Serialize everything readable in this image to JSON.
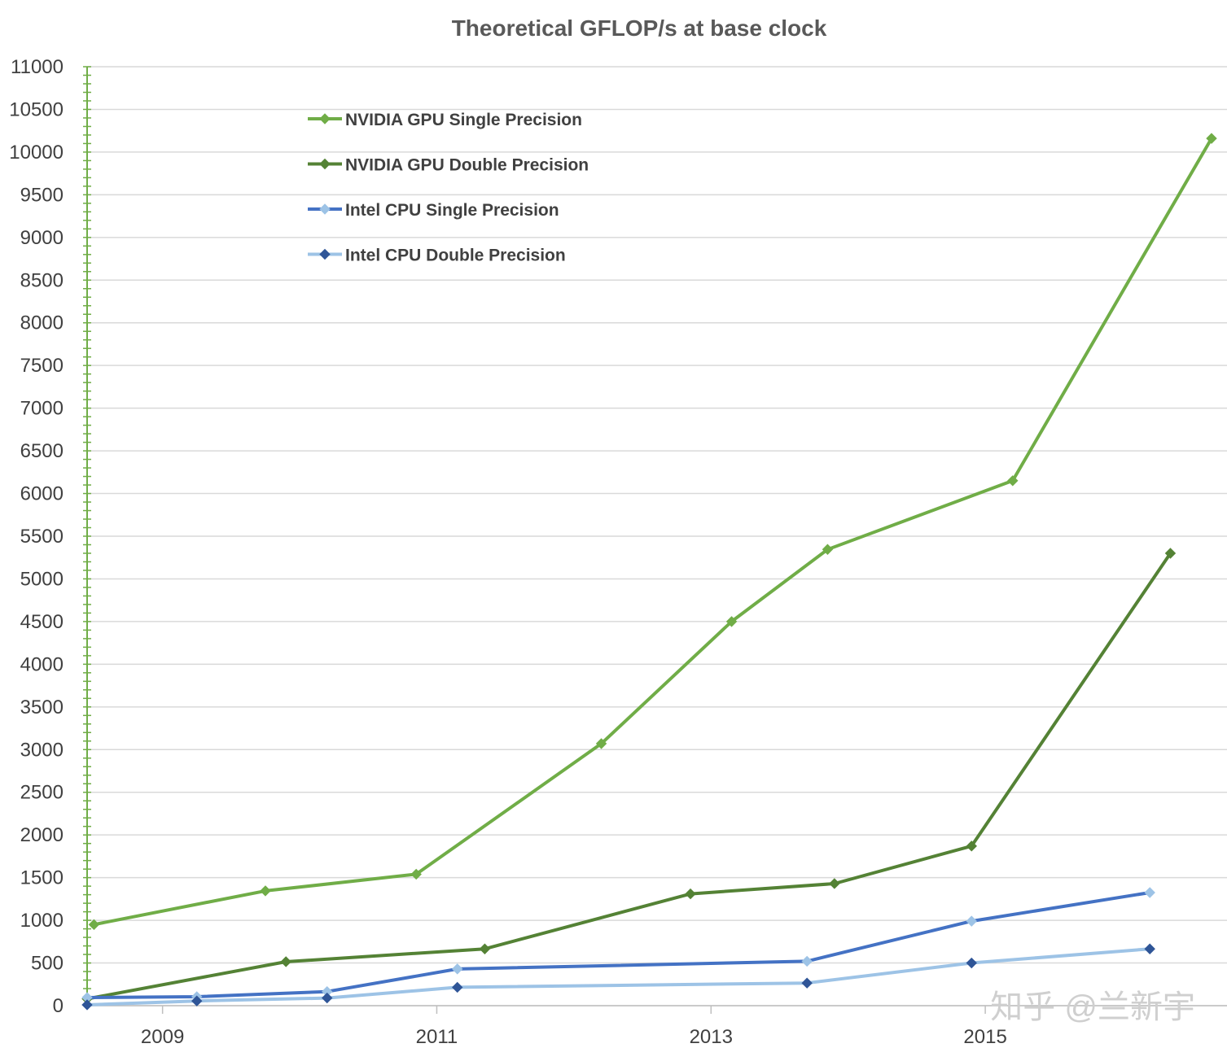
{
  "watermark": "知乎 @兰新宇",
  "chart_data": {
    "type": "line",
    "title": "Theoretical GFLOP/s at base clock",
    "xlabel": "",
    "ylabel": "",
    "ylim": [
      0,
      11000
    ],
    "yticks": [
      0,
      500,
      1000,
      1500,
      2000,
      2500,
      3000,
      3500,
      4000,
      4500,
      5000,
      5500,
      6000,
      6500,
      7000,
      7500,
      8000,
      8500,
      9000,
      9500,
      10000,
      10500,
      11000
    ],
    "xlim": [
      2008.45,
      2016.65
    ],
    "xticks": [
      "2009",
      "2011",
      "2013",
      "2015"
    ],
    "grid": "horizontal",
    "legend_position": "top-left",
    "series": [
      {
        "name": "NVIDIA GPU Single Precision",
        "color": "#70ad47",
        "legend_marker_color": "#70ad47",
        "points": [
          {
            "x": 2008.5,
            "y": 950
          },
          {
            "x": 2009.75,
            "y": 1345
          },
          {
            "x": 2010.85,
            "y": 1540
          },
          {
            "x": 2012.2,
            "y": 3070
          },
          {
            "x": 2013.15,
            "y": 4500
          },
          {
            "x": 2013.85,
            "y": 5345
          },
          {
            "x": 2015.2,
            "y": 6150
          },
          {
            "x": 2016.65,
            "y": 10160
          }
        ]
      },
      {
        "name": "NVIDIA GPU Double Precision",
        "color": "#548235",
        "legend_marker_color": "#548235",
        "points": [
          {
            "x": 2008.45,
            "y": 80
          },
          {
            "x": 2009.9,
            "y": 515
          },
          {
            "x": 2011.35,
            "y": 665
          },
          {
            "x": 2012.85,
            "y": 1310
          },
          {
            "x": 2013.9,
            "y": 1430
          },
          {
            "x": 2014.9,
            "y": 1870
          },
          {
            "x": 2016.35,
            "y": 5300
          }
        ]
      },
      {
        "name": "Intel CPU Single Precision",
        "color": "#4472c4",
        "legend_marker_color": "#9dc3e6",
        "marker_color": "#9dc3e6",
        "points": [
          {
            "x": 2008.45,
            "y": 95
          },
          {
            "x": 2009.25,
            "y": 105
          },
          {
            "x": 2010.2,
            "y": 165
          },
          {
            "x": 2011.15,
            "y": 430
          },
          {
            "x": 2013.7,
            "y": 520
          },
          {
            "x": 2014.9,
            "y": 990
          },
          {
            "x": 2016.2,
            "y": 1325
          }
        ]
      },
      {
        "name": "Intel CPU Double Precision",
        "color": "#9dc3e6",
        "legend_marker_color": "#2f5597",
        "marker_color": "#2f5597",
        "points": [
          {
            "x": 2008.45,
            "y": 10
          },
          {
            "x": 2009.25,
            "y": 55
          },
          {
            "x": 2010.2,
            "y": 90
          },
          {
            "x": 2011.15,
            "y": 215
          },
          {
            "x": 2013.7,
            "y": 265
          },
          {
            "x": 2014.9,
            "y": 500
          },
          {
            "x": 2016.2,
            "y": 665
          }
        ]
      }
    ]
  }
}
